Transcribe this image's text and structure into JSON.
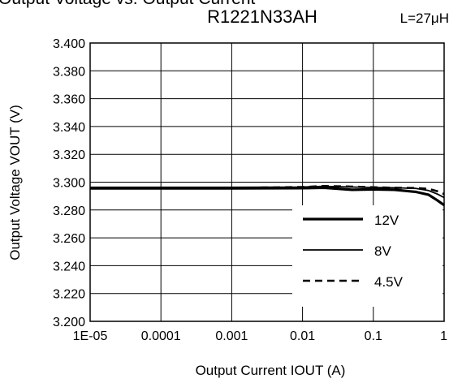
{
  "clipped_heading": "Output Voltage vs. Output Current",
  "chart_data": {
    "type": "line",
    "title": "R1221N33AH",
    "subtitle": "L=27μH",
    "xlabel": "Output Current IOUT (A)",
    "ylabel": "Output Voltage VOUT (V)",
    "x_scale": "log",
    "xlim": [
      1e-05,
      1
    ],
    "ylim": [
      3.2,
      3.4
    ],
    "grid": true,
    "legend_position": "bottom-right inside plot",
    "x_ticks": [
      1e-05,
      0.0001,
      0.001,
      0.01,
      0.1,
      1
    ],
    "x_tick_labels": [
      "1E-05",
      "0.0001",
      "0.001",
      "0.01",
      "0.1",
      "1"
    ],
    "y_ticks": [
      3.2,
      3.22,
      3.24,
      3.26,
      3.28,
      3.3,
      3.32,
      3.34,
      3.36,
      3.38,
      3.4
    ],
    "y_tick_labels": [
      "3.200",
      "3.220",
      "3.240",
      "3.260",
      "3.280",
      "3.300",
      "3.320",
      "3.340",
      "3.360",
      "3.380",
      "3.400"
    ],
    "series": [
      {
        "name": "12V",
        "style": "solid-thick",
        "color": "#000000",
        "x": [
          1e-05,
          0.0001,
          0.001,
          0.01,
          0.02,
          0.05,
          0.1,
          0.2,
          0.4,
          0.6,
          0.8,
          1
        ],
        "y": [
          3.2955,
          3.2955,
          3.2955,
          3.2957,
          3.296,
          3.2945,
          3.2948,
          3.2945,
          3.293,
          3.291,
          3.287,
          3.2835
        ]
      },
      {
        "name": "8V",
        "style": "solid-thin",
        "color": "#000000",
        "x": [
          1e-05,
          0.0001,
          0.001,
          0.01,
          0.02,
          0.05,
          0.1,
          0.2,
          0.4,
          0.6,
          0.8,
          1
        ],
        "y": [
          3.2963,
          3.2963,
          3.2963,
          3.2965,
          3.297,
          3.2965,
          3.2962,
          3.296,
          3.2955,
          3.294,
          3.2915,
          3.289
        ]
      },
      {
        "name": "4.5V",
        "style": "dashed",
        "color": "#000000",
        "x": [
          1e-05,
          0.0001,
          0.001,
          0.01,
          0.02,
          0.05,
          0.1,
          0.2,
          0.4,
          0.6,
          0.8,
          1
        ],
        "y": [
          3.2958,
          3.2958,
          3.2958,
          3.2965,
          3.2972,
          3.2968,
          3.2963,
          3.296,
          3.2958,
          3.2952,
          3.2935,
          3.2915
        ]
      }
    ]
  }
}
